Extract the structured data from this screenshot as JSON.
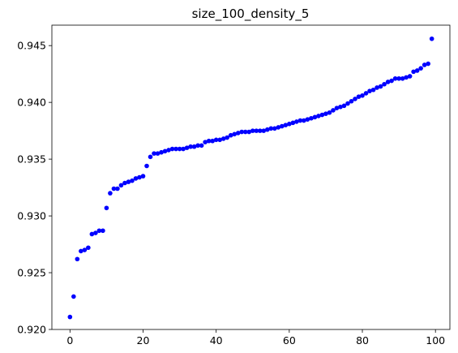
{
  "chart_data": {
    "type": "scatter",
    "title": "size_100_density_5",
    "xlabel": "",
    "ylabel": "",
    "xlim": [
      -4.95,
      103.95
    ],
    "ylim": [
      0.92,
      0.9468
    ],
    "xticks": [
      0,
      20,
      40,
      60,
      80,
      100
    ],
    "xtick_labels": [
      "0",
      "20",
      "40",
      "60",
      "80",
      "100"
    ],
    "yticks": [
      0.92,
      0.925,
      0.93,
      0.935,
      0.94,
      0.945
    ],
    "ytick_labels": [
      "0.920",
      "0.925",
      "0.930",
      "0.935",
      "0.940",
      "0.945"
    ],
    "grid": false,
    "marker_color": "#0000ff",
    "series": [
      {
        "x": [
          0,
          1,
          2,
          3,
          4,
          5,
          6,
          7,
          8,
          9,
          10,
          11,
          12,
          13,
          14,
          15,
          16,
          17,
          18,
          19,
          20,
          21,
          22,
          23,
          24,
          25,
          26,
          27,
          28,
          29,
          30,
          31,
          32,
          33,
          34,
          35,
          36,
          37,
          38,
          39,
          40,
          41,
          42,
          43,
          44,
          45,
          46,
          47,
          48,
          49,
          50,
          51,
          52,
          53,
          54,
          55,
          56,
          57,
          58,
          59,
          60,
          61,
          62,
          63,
          64,
          65,
          66,
          67,
          68,
          69,
          70,
          71,
          72,
          73,
          74,
          75,
          76,
          77,
          78,
          79,
          80,
          81,
          82,
          83,
          84,
          85,
          86,
          87,
          88,
          89,
          90,
          91,
          92,
          93,
          94,
          95,
          96,
          97,
          98,
          99
        ],
        "y": [
          0.9211,
          0.9229,
          0.9262,
          0.9269,
          0.927,
          0.9272,
          0.9284,
          0.9285,
          0.9287,
          0.9287,
          0.9307,
          0.932,
          0.9324,
          0.9324,
          0.9327,
          0.9329,
          0.933,
          0.9331,
          0.9333,
          0.9334,
          0.9335,
          0.9344,
          0.9352,
          0.9355,
          0.9355,
          0.9356,
          0.9357,
          0.9358,
          0.9359,
          0.9359,
          0.9359,
          0.9359,
          0.936,
          0.9361,
          0.9361,
          0.9362,
          0.9362,
          0.9365,
          0.9366,
          0.9366,
          0.9367,
          0.9367,
          0.9368,
          0.9369,
          0.9371,
          0.9372,
          0.9373,
          0.9374,
          0.9374,
          0.9374,
          0.9375,
          0.9375,
          0.9375,
          0.9375,
          0.9376,
          0.9377,
          0.9377,
          0.9378,
          0.9379,
          0.938,
          0.9381,
          0.9382,
          0.9383,
          0.9384,
          0.9384,
          0.9385,
          0.9386,
          0.9387,
          0.9388,
          0.9389,
          0.939,
          0.9391,
          0.9393,
          0.9395,
          0.9396,
          0.9397,
          0.9399,
          0.9401,
          0.9403,
          0.9405,
          0.9406,
          0.9408,
          0.941,
          0.9411,
          0.9413,
          0.9414,
          0.9416,
          0.9418,
          0.9419,
          0.9421,
          0.9421,
          0.9421,
          0.9422,
          0.9423,
          0.9427,
          0.9428,
          0.943,
          0.9433,
          0.9434,
          0.9456
        ]
      }
    ]
  }
}
